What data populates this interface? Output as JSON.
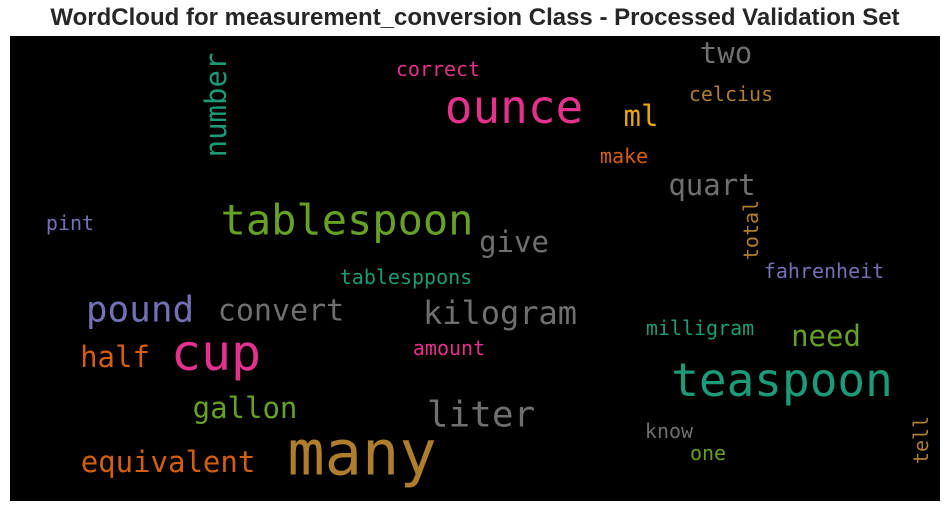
{
  "chart_data": {
    "type": "wordcloud",
    "title": "WordCloud for measurement_conversion Class - Processed Validation Set",
    "background": "#000000",
    "words": [
      {
        "text": "many",
        "color": "#ae7d2d",
        "orientation": "horizontal"
      },
      {
        "text": "ounce",
        "color": "#e2328c",
        "orientation": "horizontal"
      },
      {
        "text": "teaspoon",
        "color": "#1d9a78",
        "orientation": "horizontal"
      },
      {
        "text": "cup",
        "color": "#e2328c",
        "orientation": "horizontal"
      },
      {
        "text": "tablespoon",
        "color": "#67a025",
        "orientation": "horizontal"
      },
      {
        "text": "pound",
        "color": "#7371b3",
        "orientation": "horizontal"
      },
      {
        "text": "liter",
        "color": "#6f6f6f",
        "orientation": "horizontal"
      },
      {
        "text": "kilogram",
        "color": "#6f6f6f",
        "orientation": "horizontal"
      },
      {
        "text": "convert",
        "color": "#6f6f6f",
        "orientation": "horizontal"
      },
      {
        "text": "equivalent",
        "color": "#d35f0e",
        "orientation": "horizontal"
      },
      {
        "text": "gallon",
        "color": "#67a025",
        "orientation": "horizontal"
      },
      {
        "text": "quart",
        "color": "#6f6f6f",
        "orientation": "horizontal"
      },
      {
        "text": "number",
        "color": "#1d9a78",
        "orientation": "vertical"
      },
      {
        "text": "half",
        "color": "#d35f0e",
        "orientation": "horizontal"
      },
      {
        "text": "give",
        "color": "#6f6f6f",
        "orientation": "horizontal"
      },
      {
        "text": "need",
        "color": "#67a025",
        "orientation": "horizontal"
      },
      {
        "text": "two",
        "color": "#6f6f6f",
        "orientation": "horizontal"
      },
      {
        "text": "ml",
        "color": "#e6a50a",
        "orientation": "horizontal"
      },
      {
        "text": "tablesppons",
        "color": "#1d9a78",
        "orientation": "horizontal"
      },
      {
        "text": "milligram",
        "color": "#1d9a78",
        "orientation": "horizontal"
      },
      {
        "text": "fahrenheit",
        "color": "#7371b3",
        "orientation": "horizontal"
      },
      {
        "text": "total",
        "color": "#ae7d2d",
        "orientation": "vertical"
      },
      {
        "text": "celcius",
        "color": "#ae7d2d",
        "orientation": "horizontal"
      },
      {
        "text": "correct",
        "color": "#e2328c",
        "orientation": "horizontal"
      },
      {
        "text": "make",
        "color": "#d35f0e",
        "orientation": "horizontal"
      },
      {
        "text": "amount",
        "color": "#e2328c",
        "orientation": "horizontal"
      },
      {
        "text": "know",
        "color": "#6f6f6f",
        "orientation": "horizontal"
      },
      {
        "text": "one",
        "color": "#67a025",
        "orientation": "horizontal"
      },
      {
        "text": "tell",
        "color": "#ae7d2d",
        "orientation": "vertical"
      },
      {
        "text": "pint",
        "color": "#7371b3",
        "orientation": "horizontal"
      }
    ]
  }
}
